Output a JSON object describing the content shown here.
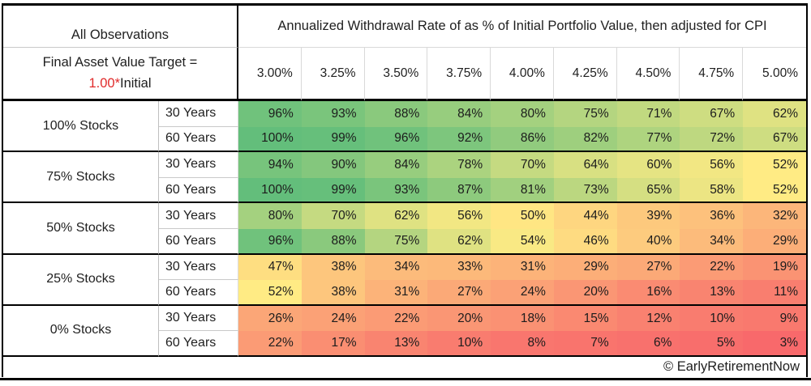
{
  "header": {
    "observations_label": "All Observations",
    "target_line1": "Final Asset Value Target =",
    "target_multiplier": "1.00*",
    "target_suffix": "Initial"
  },
  "footer": {
    "credit": "© EarlyRetirementNow"
  },
  "colors": {
    "red_text": "#e02b2b",
    "scale_min": "#F8696B",
    "scale_mid": "#FFEB84",
    "scale_max": "#63BE7B"
  },
  "chart_data": {
    "type": "heatmap",
    "title": "Annualized Withdrawal Rate of as % of Initial Portfolio Value, then adjusted for CPI",
    "unit": "%",
    "columns": [
      "3.00%",
      "3.25%",
      "3.50%",
      "3.75%",
      "4.00%",
      "4.25%",
      "4.50%",
      "4.75%",
      "5.00%"
    ],
    "row_groups": [
      {
        "label": "100% Stocks",
        "rows": [
          {
            "label": "30 Years",
            "values": [
              96,
              93,
              88,
              84,
              80,
              75,
              71,
              67,
              62
            ]
          },
          {
            "label": "60 Years",
            "values": [
              100,
              99,
              96,
              92,
              86,
              82,
              77,
              72,
              67
            ]
          }
        ]
      },
      {
        "label": "75% Stocks",
        "rows": [
          {
            "label": "30 Years",
            "values": [
              94,
              90,
              84,
              78,
              70,
              64,
              60,
              56,
              52
            ]
          },
          {
            "label": "60 Years",
            "values": [
              100,
              99,
              93,
              87,
              81,
              73,
              65,
              58,
              52
            ]
          }
        ]
      },
      {
        "label": "50% Stocks",
        "rows": [
          {
            "label": "30 Years",
            "values": [
              80,
              70,
              62,
              56,
              50,
              44,
              39,
              36,
              32
            ]
          },
          {
            "label": "60 Years",
            "values": [
              96,
              88,
              75,
              62,
              54,
              46,
              40,
              34,
              29
            ]
          }
        ]
      },
      {
        "label": "25% Stocks",
        "rows": [
          {
            "label": "30 Years",
            "values": [
              47,
              38,
              34,
              33,
              31,
              29,
              27,
              22,
              19
            ]
          },
          {
            "label": "60 Years",
            "values": [
              52,
              38,
              31,
              27,
              24,
              20,
              16,
              13,
              11
            ]
          }
        ]
      },
      {
        "label": "0% Stocks",
        "rows": [
          {
            "label": "30 Years",
            "values": [
              26,
              24,
              22,
              20,
              18,
              15,
              12,
              10,
              9
            ]
          },
          {
            "label": "60 Years",
            "values": [
              22,
              17,
              13,
              10,
              8,
              7,
              6,
              5,
              3
            ]
          }
        ]
      }
    ],
    "color_scale": {
      "min_value": 3,
      "mid_value": 52,
      "max_value": 100,
      "min_color": "#F8696B",
      "mid_color": "#FFEB84",
      "max_color": "#63BE7B"
    },
    "legend": "cell color encodes success probability: red = low, yellow = mid, green = high"
  }
}
